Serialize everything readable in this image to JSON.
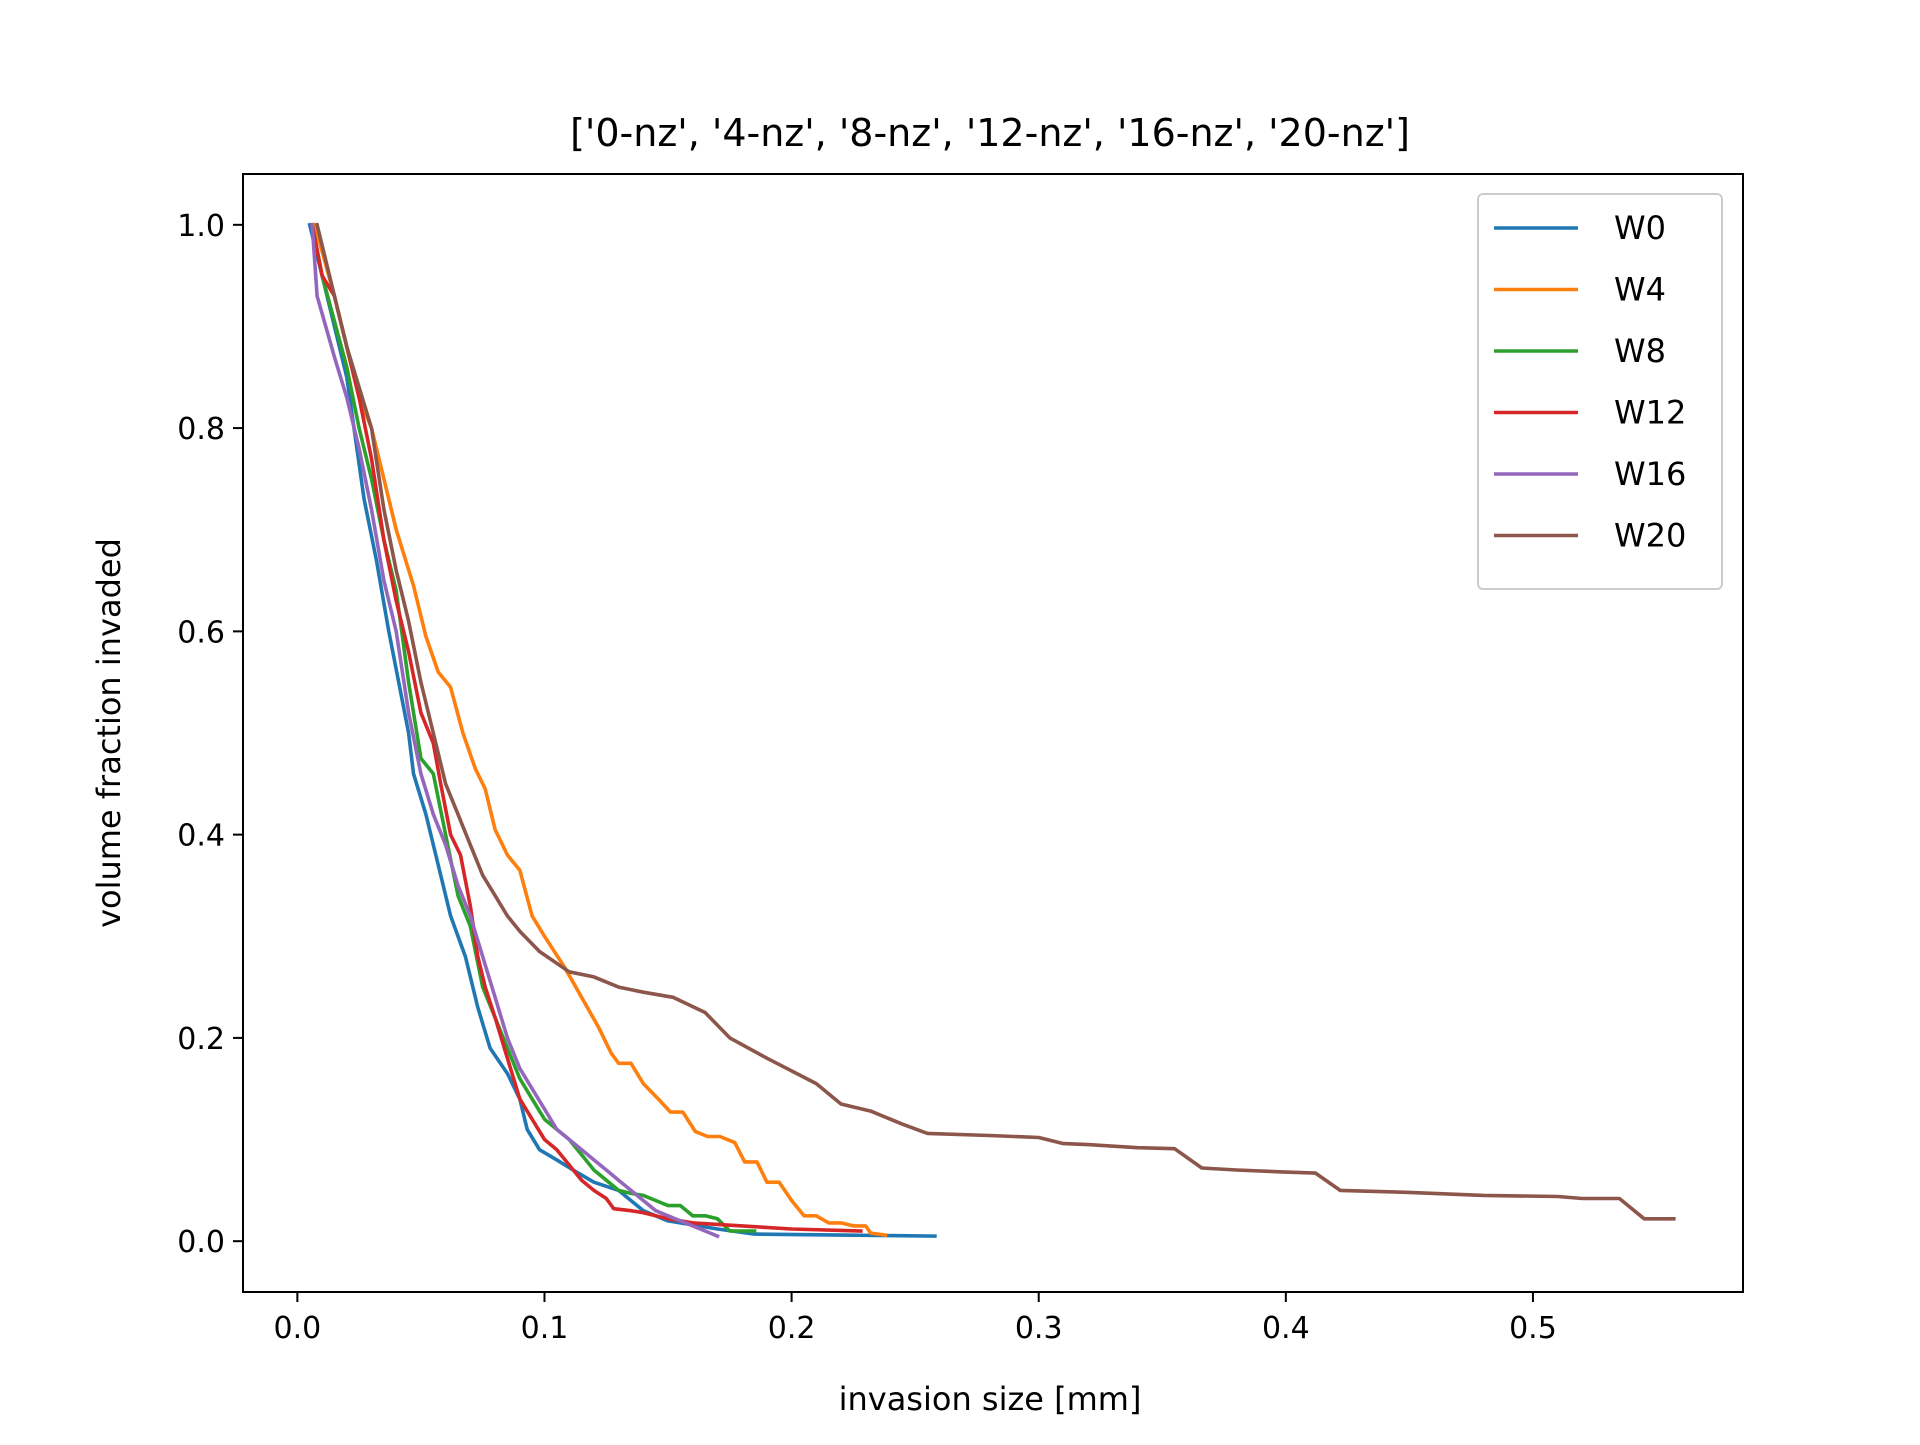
{
  "chart_data": {
    "type": "line",
    "title": "['0-nz', '4-nz', '8-nz', '12-nz', '16-nz', '20-nz']",
    "xlabel": "invasion size [mm]",
    "ylabel": "volume fraction invaded",
    "xlim": [
      -0.022,
      0.585
    ],
    "ylim": [
      -0.05,
      1.05
    ],
    "xticks": [
      0.0,
      0.1,
      0.2,
      0.3,
      0.4,
      0.5
    ],
    "xtick_labels": [
      "0.0",
      "0.1",
      "0.2",
      "0.3",
      "0.4",
      "0.5"
    ],
    "yticks": [
      0.0,
      0.2,
      0.4,
      0.6,
      0.8,
      1.0
    ],
    "ytick_labels": [
      "0.0",
      "0.2",
      "0.4",
      "0.6",
      "0.8",
      "1.0"
    ],
    "grid": false,
    "legend_position": "top-right",
    "series": [
      {
        "name": "W0",
        "color": "#1f77b4",
        "points": [
          [
            0.005,
            1.0
          ],
          [
            0.01,
            0.95
          ],
          [
            0.02,
            0.85
          ],
          [
            0.027,
            0.73
          ],
          [
            0.032,
            0.67
          ],
          [
            0.037,
            0.6
          ],
          [
            0.045,
            0.5
          ],
          [
            0.047,
            0.46
          ],
          [
            0.052,
            0.42
          ],
          [
            0.056,
            0.38
          ],
          [
            0.062,
            0.32
          ],
          [
            0.068,
            0.28
          ],
          [
            0.073,
            0.23
          ],
          [
            0.078,
            0.19
          ],
          [
            0.085,
            0.165
          ],
          [
            0.09,
            0.14
          ],
          [
            0.093,
            0.11
          ],
          [
            0.098,
            0.09
          ],
          [
            0.105,
            0.08
          ],
          [
            0.113,
            0.068
          ],
          [
            0.12,
            0.058
          ],
          [
            0.13,
            0.05
          ],
          [
            0.14,
            0.03
          ],
          [
            0.15,
            0.02
          ],
          [
            0.17,
            0.012
          ],
          [
            0.185,
            0.007
          ],
          [
            0.22,
            0.006
          ],
          [
            0.258,
            0.005
          ]
        ]
      },
      {
        "name": "W4",
        "color": "#ff7f0e",
        "points": [
          [
            0.007,
            1.0
          ],
          [
            0.015,
            0.93
          ],
          [
            0.025,
            0.83
          ],
          [
            0.03,
            0.8
          ],
          [
            0.035,
            0.75
          ],
          [
            0.04,
            0.7
          ],
          [
            0.047,
            0.645
          ],
          [
            0.052,
            0.595
          ],
          [
            0.057,
            0.56
          ],
          [
            0.062,
            0.545
          ],
          [
            0.067,
            0.5
          ],
          [
            0.072,
            0.465
          ],
          [
            0.076,
            0.445
          ],
          [
            0.08,
            0.405
          ],
          [
            0.085,
            0.38
          ],
          [
            0.09,
            0.365
          ],
          [
            0.095,
            0.32
          ],
          [
            0.1,
            0.3
          ],
          [
            0.108,
            0.27
          ],
          [
            0.115,
            0.24
          ],
          [
            0.122,
            0.21
          ],
          [
            0.127,
            0.185
          ],
          [
            0.13,
            0.175
          ],
          [
            0.135,
            0.175
          ],
          [
            0.14,
            0.155
          ],
          [
            0.146,
            0.14
          ],
          [
            0.151,
            0.127
          ],
          [
            0.156,
            0.127
          ],
          [
            0.161,
            0.108
          ],
          [
            0.166,
            0.103
          ],
          [
            0.171,
            0.103
          ],
          [
            0.177,
            0.097
          ],
          [
            0.181,
            0.078
          ],
          [
            0.186,
            0.078
          ],
          [
            0.19,
            0.058
          ],
          [
            0.195,
            0.058
          ],
          [
            0.2,
            0.04
          ],
          [
            0.205,
            0.025
          ],
          [
            0.21,
            0.025
          ],
          [
            0.215,
            0.018
          ],
          [
            0.22,
            0.018
          ],
          [
            0.225,
            0.015
          ],
          [
            0.23,
            0.015
          ],
          [
            0.232,
            0.008
          ],
          [
            0.238,
            0.006
          ]
        ]
      },
      {
        "name": "W8",
        "color": "#2ca02c",
        "points": [
          [
            0.006,
            1.0
          ],
          [
            0.01,
            0.95
          ],
          [
            0.02,
            0.86
          ],
          [
            0.025,
            0.8
          ],
          [
            0.03,
            0.75
          ],
          [
            0.035,
            0.69
          ],
          [
            0.04,
            0.64
          ],
          [
            0.045,
            0.55
          ],
          [
            0.05,
            0.475
          ],
          [
            0.055,
            0.46
          ],
          [
            0.06,
            0.4
          ],
          [
            0.065,
            0.34
          ],
          [
            0.07,
            0.31
          ],
          [
            0.075,
            0.25
          ],
          [
            0.08,
            0.22
          ],
          [
            0.085,
            0.19
          ],
          [
            0.09,
            0.16
          ],
          [
            0.095,
            0.14
          ],
          [
            0.1,
            0.12
          ],
          [
            0.105,
            0.11
          ],
          [
            0.11,
            0.1
          ],
          [
            0.115,
            0.085
          ],
          [
            0.12,
            0.07
          ],
          [
            0.125,
            0.06
          ],
          [
            0.13,
            0.05
          ],
          [
            0.135,
            0.047
          ],
          [
            0.14,
            0.045
          ],
          [
            0.145,
            0.04
          ],
          [
            0.15,
            0.035
          ],
          [
            0.155,
            0.035
          ],
          [
            0.16,
            0.025
          ],
          [
            0.165,
            0.025
          ],
          [
            0.17,
            0.022
          ],
          [
            0.175,
            0.01
          ],
          [
            0.185,
            0.01
          ]
        ]
      },
      {
        "name": "W12",
        "color": "#d62728",
        "points": [
          [
            0.006,
            1.0
          ],
          [
            0.01,
            0.95
          ],
          [
            0.015,
            0.93
          ],
          [
            0.02,
            0.88
          ],
          [
            0.025,
            0.83
          ],
          [
            0.03,
            0.77
          ],
          [
            0.035,
            0.69
          ],
          [
            0.04,
            0.63
          ],
          [
            0.045,
            0.58
          ],
          [
            0.05,
            0.52
          ],
          [
            0.055,
            0.49
          ],
          [
            0.058,
            0.45
          ],
          [
            0.062,
            0.4
          ],
          [
            0.066,
            0.38
          ],
          [
            0.07,
            0.33
          ],
          [
            0.073,
            0.28
          ],
          [
            0.076,
            0.25
          ],
          [
            0.08,
            0.22
          ],
          [
            0.085,
            0.18
          ],
          [
            0.09,
            0.14
          ],
          [
            0.095,
            0.12
          ],
          [
            0.1,
            0.1
          ],
          [
            0.105,
            0.09
          ],
          [
            0.11,
            0.075
          ],
          [
            0.115,
            0.06
          ],
          [
            0.12,
            0.05
          ],
          [
            0.125,
            0.042
          ],
          [
            0.128,
            0.032
          ],
          [
            0.135,
            0.03
          ],
          [
            0.14,
            0.028
          ],
          [
            0.145,
            0.025
          ],
          [
            0.15,
            0.022
          ],
          [
            0.16,
            0.018
          ],
          [
            0.18,
            0.015
          ],
          [
            0.2,
            0.012
          ],
          [
            0.228,
            0.01
          ]
        ]
      },
      {
        "name": "W16",
        "color": "#9467bd",
        "points": [
          [
            0.006,
            1.0
          ],
          [
            0.008,
            0.93
          ],
          [
            0.015,
            0.87
          ],
          [
            0.02,
            0.83
          ],
          [
            0.025,
            0.78
          ],
          [
            0.03,
            0.72
          ],
          [
            0.035,
            0.65
          ],
          [
            0.04,
            0.6
          ],
          [
            0.045,
            0.52
          ],
          [
            0.05,
            0.46
          ],
          [
            0.055,
            0.42
          ],
          [
            0.06,
            0.39
          ],
          [
            0.065,
            0.35
          ],
          [
            0.07,
            0.32
          ],
          [
            0.075,
            0.28
          ],
          [
            0.08,
            0.24
          ],
          [
            0.085,
            0.2
          ],
          [
            0.09,
            0.17
          ],
          [
            0.095,
            0.15
          ],
          [
            0.1,
            0.13
          ],
          [
            0.105,
            0.11
          ],
          [
            0.11,
            0.1
          ],
          [
            0.115,
            0.09
          ],
          [
            0.12,
            0.08
          ],
          [
            0.125,
            0.07
          ],
          [
            0.13,
            0.06
          ],
          [
            0.135,
            0.05
          ],
          [
            0.14,
            0.04
          ],
          [
            0.145,
            0.03
          ],
          [
            0.15,
            0.025
          ],
          [
            0.155,
            0.02
          ],
          [
            0.16,
            0.015
          ],
          [
            0.165,
            0.01
          ],
          [
            0.17,
            0.005
          ]
        ]
      },
      {
        "name": "W20",
        "color": "#8c564b",
        "points": [
          [
            0.008,
            1.0
          ],
          [
            0.02,
            0.88
          ],
          [
            0.03,
            0.8
          ],
          [
            0.035,
            0.72
          ],
          [
            0.04,
            0.66
          ],
          [
            0.045,
            0.61
          ],
          [
            0.05,
            0.55
          ],
          [
            0.055,
            0.5
          ],
          [
            0.06,
            0.45
          ],
          [
            0.065,
            0.42
          ],
          [
            0.07,
            0.39
          ],
          [
            0.075,
            0.36
          ],
          [
            0.08,
            0.34
          ],
          [
            0.085,
            0.32
          ],
          [
            0.09,
            0.305
          ],
          [
            0.098,
            0.285
          ],
          [
            0.11,
            0.265
          ],
          [
            0.12,
            0.26
          ],
          [
            0.13,
            0.25
          ],
          [
            0.14,
            0.245
          ],
          [
            0.152,
            0.24
          ],
          [
            0.165,
            0.225
          ],
          [
            0.175,
            0.2
          ],
          [
            0.19,
            0.18
          ],
          [
            0.21,
            0.155
          ],
          [
            0.22,
            0.135
          ],
          [
            0.232,
            0.128
          ],
          [
            0.245,
            0.115
          ],
          [
            0.255,
            0.106
          ],
          [
            0.28,
            0.104
          ],
          [
            0.3,
            0.102
          ],
          [
            0.31,
            0.096
          ],
          [
            0.32,
            0.095
          ],
          [
            0.34,
            0.092
          ],
          [
            0.355,
            0.091
          ],
          [
            0.366,
            0.072
          ],
          [
            0.38,
            0.07
          ],
          [
            0.4,
            0.068
          ],
          [
            0.412,
            0.067
          ],
          [
            0.422,
            0.05
          ],
          [
            0.45,
            0.048
          ],
          [
            0.48,
            0.045
          ],
          [
            0.51,
            0.044
          ],
          [
            0.52,
            0.042
          ],
          [
            0.535,
            0.042
          ],
          [
            0.545,
            0.022
          ],
          [
            0.557,
            0.022
          ]
        ]
      }
    ]
  }
}
